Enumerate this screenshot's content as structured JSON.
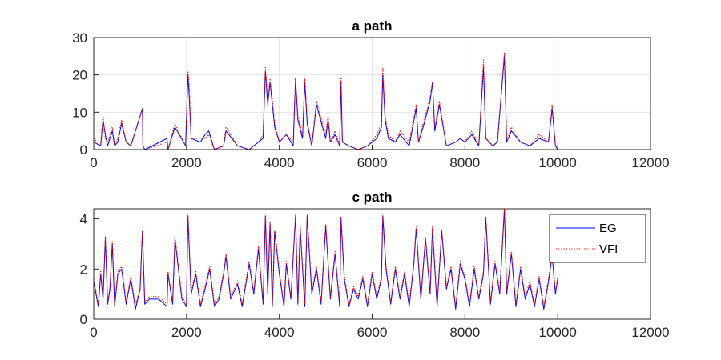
{
  "chart_data": [
    {
      "type": "line",
      "title": "a path",
      "xlabel": "",
      "ylabel": "",
      "xlim": [
        0,
        12000
      ],
      "ylim": [
        0,
        30
      ],
      "xticks": [
        "0",
        "2000",
        "4000",
        "6000",
        "8000",
        "10000",
        "12000"
      ],
      "yticks": [
        "0",
        "10",
        "20",
        "30"
      ],
      "grid": true,
      "series": [
        {
          "name": "EG",
          "color": "#0000ff",
          "style": "solid",
          "x": [
            0,
            150,
            200,
            250,
            300,
            400,
            450,
            520,
            600,
            700,
            800,
            1050,
            1060,
            1100,
            1580,
            1600,
            1750,
            1980,
            2030,
            2060,
            2100,
            2300,
            2400,
            2480,
            2600,
            2800,
            2850,
            3100,
            3350,
            3450,
            3550,
            3650,
            3700,
            3750,
            3800,
            3900,
            4000,
            4150,
            4300,
            4350,
            4400,
            4500,
            4550,
            4600,
            4700,
            4800,
            5000,
            5050,
            5100,
            5200,
            5300,
            5330,
            5360,
            5500,
            5700,
            5900,
            6100,
            6200,
            6230,
            6280,
            6350,
            6500,
            6600,
            6800,
            6950,
            7000,
            7100,
            7250,
            7300,
            7350,
            7450,
            7600,
            7800,
            7900,
            8000,
            8150,
            8300,
            8400,
            8450,
            8600,
            8700,
            8850,
            8900,
            9000,
            9200,
            9400,
            9600,
            9800,
            9880,
            9950,
            10000
          ],
          "y": [
            2,
            1,
            8,
            4,
            1,
            5,
            1,
            2,
            7,
            2,
            1,
            11,
            1,
            0,
            3,
            0,
            6,
            1,
            20,
            14,
            3,
            2,
            4,
            5,
            0,
            1,
            5,
            1,
            0,
            1,
            2,
            3,
            21,
            12,
            18,
            6,
            2,
            4,
            1,
            19,
            8,
            3,
            18,
            7,
            1,
            12,
            3,
            8,
            2,
            4,
            1,
            18,
            2,
            1,
            0,
            1,
            3,
            6,
            20,
            8,
            3,
            2,
            4,
            1,
            11,
            2,
            6,
            13,
            18,
            5,
            12,
            1,
            2,
            3,
            2,
            4,
            1,
            22,
            3,
            1,
            2,
            25,
            2,
            5,
            2,
            1,
            3,
            2,
            11,
            1,
            0
          ]
        },
        {
          "name": "VFI",
          "color": "#ff0000",
          "style": "dotted",
          "x": [
            0,
            150,
            200,
            250,
            300,
            400,
            450,
            520,
            600,
            700,
            800,
            1050,
            1060,
            1100,
            1580,
            1600,
            1750,
            1980,
            2030,
            2060,
            2100,
            2300,
            2400,
            2480,
            2600,
            2800,
            2850,
            3100,
            3350,
            3450,
            3550,
            3650,
            3700,
            3750,
            3800,
            3900,
            4000,
            4150,
            4300,
            4350,
            4400,
            4500,
            4550,
            4600,
            4700,
            4800,
            5000,
            5050,
            5100,
            5200,
            5300,
            5330,
            5360,
            5500,
            5700,
            5900,
            6100,
            6200,
            6230,
            6280,
            6350,
            6500,
            6600,
            6800,
            6950,
            7000,
            7100,
            7250,
            7300,
            7350,
            7450,
            7600,
            7800,
            7900,
            8000,
            8150,
            8300,
            8400,
            8450,
            8600,
            8700,
            8850,
            8900,
            9000,
            9200,
            9400,
            9600,
            9800,
            9880,
            9950,
            10000
          ],
          "y": [
            3,
            1,
            9,
            3,
            2,
            6,
            1,
            3,
            8,
            2,
            1,
            11,
            1,
            0,
            2,
            0,
            7,
            1,
            21,
            17,
            3,
            3,
            3,
            4,
            0,
            1,
            6,
            1,
            0,
            1,
            2,
            4,
            22,
            13,
            19,
            7,
            2,
            4,
            2,
            19,
            9,
            4,
            19,
            8,
            1,
            13,
            4,
            9,
            2,
            5,
            1,
            19,
            2,
            1,
            0,
            1,
            4,
            7,
            22,
            9,
            4,
            2,
            5,
            2,
            12,
            2,
            7,
            14,
            18,
            6,
            13,
            1,
            2,
            3,
            2,
            5,
            1,
            24,
            3,
            1,
            2,
            26,
            2,
            6,
            2,
            1,
            4,
            2,
            12,
            1,
            0
          ]
        }
      ]
    },
    {
      "type": "line",
      "title": "c path",
      "xlabel": "",
      "ylabel": "",
      "xlim": [
        0,
        12000
      ],
      "ylim": [
        0,
        4.4
      ],
      "xticks": [
        "0",
        "2000",
        "4000",
        "6000",
        "8000",
        "10000",
        "12000"
      ],
      "yticks": [
        "0",
        "2",
        "4"
      ],
      "grid": false,
      "legend": {
        "position": "top-right",
        "entries": [
          "EG",
          "VFI"
        ]
      },
      "series": [
        {
          "name": "EG",
          "color": "#0000ff",
          "style": "solid",
          "x": [
            0,
            100,
            150,
            200,
            250,
            300,
            350,
            400,
            450,
            520,
            600,
            700,
            800,
            900,
            1000,
            1050,
            1100,
            1200,
            1400,
            1580,
            1600,
            1700,
            1750,
            1900,
            2000,
            2030,
            2100,
            2200,
            2300,
            2400,
            2500,
            2600,
            2700,
            2800,
            2850,
            2950,
            3100,
            3200,
            3350,
            3450,
            3550,
            3650,
            3700,
            3750,
            3800,
            3850,
            3900,
            4000,
            4100,
            4150,
            4250,
            4350,
            4400,
            4450,
            4550,
            4600,
            4700,
            4800,
            4900,
            5000,
            5100,
            5200,
            5300,
            5330,
            5400,
            5500,
            5600,
            5700,
            5800,
            5900,
            6000,
            6100,
            6200,
            6230,
            6300,
            6400,
            6500,
            6600,
            6700,
            6800,
            6900,
            6950,
            7050,
            7150,
            7250,
            7300,
            7400,
            7500,
            7600,
            7700,
            7800,
            7900,
            8000,
            8100,
            8200,
            8300,
            8400,
            8450,
            8550,
            8650,
            8750,
            8850,
            8900,
            9000,
            9100,
            9200,
            9300,
            9400,
            9500,
            9600,
            9700,
            9800,
            9880,
            9950,
            10000
          ],
          "y": [
            1.5,
            0.5,
            1.8,
            0.8,
            3.2,
            0.6,
            1.2,
            3.0,
            0.5,
            1.8,
            2.0,
            0.6,
            1.6,
            0.4,
            1.2,
            3.5,
            0.6,
            0.8,
            0.8,
            0.5,
            1.8,
            0.6,
            3.2,
            0.8,
            0.5,
            4.1,
            1.0,
            1.8,
            0.5,
            1.2,
            2.0,
            0.5,
            0.8,
            1.8,
            2.5,
            0.8,
            1.4,
            0.5,
            2.2,
            1.0,
            2.8,
            0.6,
            4.1,
            1.0,
            3.8,
            0.5,
            3.5,
            1.8,
            0.5,
            2.2,
            0.8,
            4.1,
            0.6,
            3.6,
            0.5,
            4.1,
            1.0,
            2.0,
            0.6,
            3.7,
            0.8,
            2.6,
            0.5,
            4.0,
            1.6,
            0.5,
            1.2,
            0.8,
            1.6,
            0.5,
            1.8,
            0.8,
            1.6,
            4.1,
            2.0,
            0.6,
            2.0,
            0.8,
            1.8,
            0.5,
            2.2,
            3.6,
            0.8,
            3.2,
            1.0,
            3.6,
            0.5,
            3.5,
            1.2,
            2.0,
            0.4,
            2.2,
            1.6,
            0.5,
            2.0,
            0.8,
            1.8,
            4.0,
            0.6,
            2.2,
            1.0,
            4.4,
            1.0,
            2.6,
            0.5,
            2.0,
            0.8,
            1.4,
            0.5,
            1.6,
            0.4,
            1.5,
            2.5,
            1.0,
            1.6
          ]
        },
        {
          "name": "VFI",
          "color": "#ff0000",
          "style": "dotted",
          "x": [
            0,
            100,
            150,
            200,
            250,
            300,
            350,
            400,
            450,
            520,
            600,
            700,
            800,
            900,
            1000,
            1050,
            1100,
            1200,
            1400,
            1580,
            1600,
            1700,
            1750,
            1900,
            2000,
            2030,
            2100,
            2200,
            2300,
            2400,
            2500,
            2600,
            2700,
            2800,
            2850,
            2950,
            3100,
            3200,
            3350,
            3450,
            3550,
            3650,
            3700,
            3750,
            3800,
            3850,
            3900,
            4000,
            4100,
            4150,
            4250,
            4350,
            4400,
            4450,
            4550,
            4600,
            4700,
            4800,
            4900,
            5000,
            5100,
            5200,
            5300,
            5330,
            5400,
            5500,
            5600,
            5700,
            5800,
            5900,
            6000,
            6100,
            6200,
            6230,
            6300,
            6400,
            6500,
            6600,
            6700,
            6800,
            6900,
            6950,
            7050,
            7150,
            7250,
            7300,
            7400,
            7500,
            7600,
            7700,
            7800,
            7900,
            8000,
            8100,
            8200,
            8300,
            8400,
            8450,
            8550,
            8650,
            8750,
            8850,
            8900,
            9000,
            9100,
            9200,
            9300,
            9400,
            9500,
            9600,
            9700,
            9800,
            9880,
            9950,
            10000
          ],
          "y": [
            1.6,
            0.6,
            1.9,
            0.9,
            3.3,
            0.7,
            1.3,
            3.1,
            0.6,
            1.9,
            2.1,
            0.7,
            1.7,
            0.5,
            1.3,
            3.5,
            0.7,
            0.9,
            0.9,
            0.6,
            1.9,
            0.7,
            3.3,
            0.9,
            0.6,
            4.2,
            1.1,
            1.9,
            0.6,
            1.3,
            2.1,
            0.6,
            0.9,
            1.9,
            2.6,
            0.9,
            1.5,
            0.6,
            2.3,
            1.1,
            2.9,
            0.7,
            4.2,
            1.1,
            3.9,
            0.6,
            3.6,
            1.9,
            0.6,
            2.3,
            0.9,
            4.2,
            0.7,
            3.7,
            0.6,
            4.2,
            1.1,
            2.1,
            0.7,
            3.8,
            0.9,
            2.7,
            0.6,
            4.1,
            1.7,
            0.6,
            1.3,
            0.9,
            1.7,
            0.6,
            1.9,
            0.9,
            1.7,
            4.2,
            2.1,
            0.7,
            2.1,
            0.9,
            1.9,
            0.6,
            2.3,
            3.7,
            0.9,
            3.3,
            1.1,
            3.7,
            0.6,
            3.6,
            1.3,
            2.1,
            0.5,
            2.3,
            1.7,
            0.6,
            2.1,
            0.9,
            1.9,
            4.1,
            0.7,
            2.3,
            1.1,
            4.4,
            1.1,
            2.7,
            0.6,
            2.1,
            0.9,
            1.5,
            0.6,
            1.7,
            0.5,
            1.6,
            2.6,
            1.1,
            1.7
          ]
        }
      ]
    }
  ]
}
